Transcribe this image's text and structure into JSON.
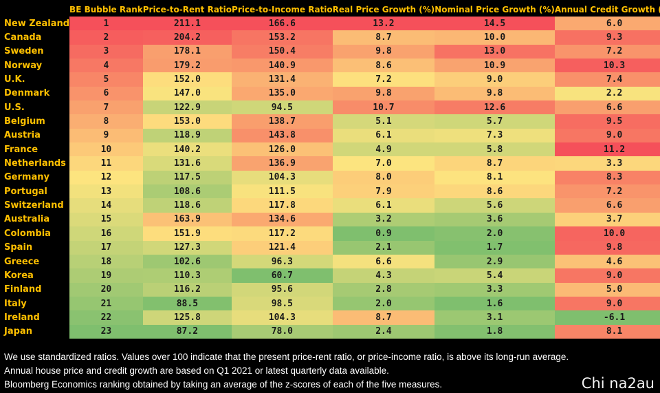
{
  "chart_data": {
    "type": "table",
    "columns": [
      "",
      "BE Bubble Rank",
      "Price-to-Rent Ratio",
      "Price-to-Income Ratio",
      "Real Price Growth (%)",
      "Nominal Price Growth (%)",
      "Annual Credit Growth (%)"
    ],
    "rows": [
      [
        "New Zealand",
        "1",
        "211.1",
        "166.6",
        "13.2",
        "14.5",
        "6.0"
      ],
      [
        "Canada",
        "2",
        "204.2",
        "153.2",
        "8.7",
        "10.0",
        "9.3"
      ],
      [
        "Sweden",
        "3",
        "178.1",
        "150.4",
        "9.8",
        "13.0",
        "7.2"
      ],
      [
        "Norway",
        "4",
        "179.2",
        "140.9",
        "8.6",
        "10.9",
        "10.3"
      ],
      [
        "U.K.",
        "5",
        "152.0",
        "131.4",
        "7.2",
        "9.0",
        "7.4"
      ],
      [
        "Denmark",
        "6",
        "147.0",
        "135.0",
        "9.8",
        "9.8",
        "2.2"
      ],
      [
        "U.S.",
        "7",
        "122.9",
        "94.5",
        "10.7",
        "12.6",
        "6.6"
      ],
      [
        "Belgium",
        "8",
        "153.0",
        "138.7",
        "5.1",
        "5.7",
        "9.5"
      ],
      [
        "Austria",
        "9",
        "118.9",
        "143.8",
        "6.1",
        "7.3",
        "9.0"
      ],
      [
        "France",
        "10",
        "140.2",
        "126.0",
        "4.9",
        "5.8",
        "11.2"
      ],
      [
        "Netherlands",
        "11",
        "131.6",
        "136.9",
        "7.0",
        "8.7",
        "3.3"
      ],
      [
        "Germany",
        "12",
        "117.5",
        "104.3",
        "8.0",
        "8.1",
        "8.3"
      ],
      [
        "Portugal",
        "13",
        "108.6",
        "111.5",
        "7.9",
        "8.6",
        "7.2"
      ],
      [
        "Switzerland",
        "14",
        "118.6",
        "117.8",
        "6.1",
        "5.6",
        "6.6"
      ],
      [
        "Australia",
        "15",
        "163.9",
        "134.6",
        "3.2",
        "3.6",
        "3.7"
      ],
      [
        "Colombia",
        "16",
        "151.9",
        "117.2",
        "0.9",
        "2.0",
        "10.0"
      ],
      [
        "Spain",
        "17",
        "127.3",
        "121.4",
        "2.1",
        "1.7",
        "9.8"
      ],
      [
        "Greece",
        "18",
        "102.6",
        "96.3",
        "6.6",
        "2.9",
        "4.6"
      ],
      [
        "Korea",
        "19",
        "110.3",
        "60.7",
        "4.3",
        "5.4",
        "9.0"
      ],
      [
        "Finland",
        "20",
        "116.2",
        "95.6",
        "2.8",
        "3.3",
        "5.0"
      ],
      [
        "Italy",
        "21",
        "88.5",
        "98.5",
        "2.0",
        "1.6",
        "9.0"
      ],
      [
        "Ireland",
        "22",
        "125.8",
        "104.3",
        "8.7",
        "3.1",
        "-6.1"
      ],
      [
        "Japan",
        "23",
        "87.2",
        "78.0",
        "2.4",
        "1.8",
        "8.1"
      ]
    ]
  },
  "notes": [
    "We use standardized ratios. Values over 100 indicate that the present price-rent ratio, or price-income ratio, is above its long-run average.",
    "Annual house price and credit growth are based on Q1 2021 or latest quarterly data available.",
    "Bloomberg Economics ranking obtained by taking an average of the z-scores of each of the five measures."
  ],
  "watermark": "Chi na2au",
  "colors": {
    "header_text": "#ffc000",
    "background": "#000000",
    "scale_high": "#f5505a",
    "scale_mid": "#fde47f",
    "scale_low": "#7fbf6e"
  }
}
